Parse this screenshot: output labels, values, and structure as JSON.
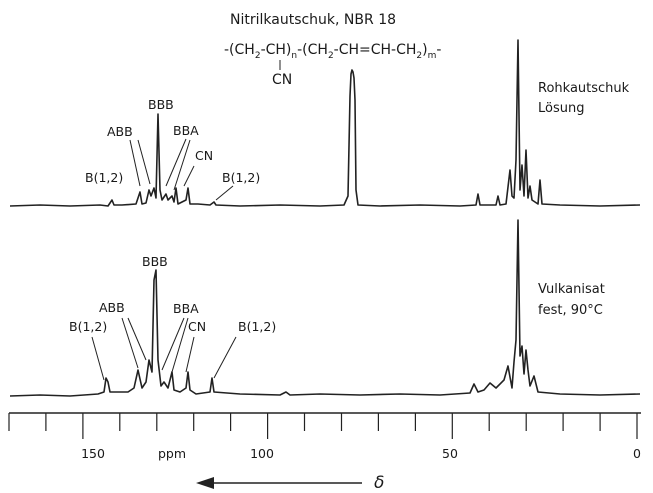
{
  "header": {
    "title": "Nitrilkautschuk, NBR 18",
    "formula": {
      "seg1": "-(CH",
      "sub1": "2",
      "seg2": "-CH)",
      "sub_n": "n",
      "seg3": "-(CH",
      "sub2": "2",
      "seg4": "-CH=CH-CH",
      "sub3": "2",
      "seg5": ")",
      "sub_m": "m",
      "seg6": "-",
      "pendant": "CN"
    }
  },
  "spectra": [
    {
      "condition_line1": "Rohkautschuk",
      "condition_line2": "Lösung",
      "labels": {
        "b12_left": "B(1,2)",
        "abb": "ABB",
        "bbb": "BBB",
        "bba": "BBA",
        "cn": "CN",
        "b12_right": "B(1,2)"
      }
    },
    {
      "condition_line1": "Vulkanisat",
      "condition_line2": "fest, 90°C",
      "labels": {
        "b12_left": "B(1,2)",
        "abb": "ABB",
        "bbb": "BBB",
        "bba": "BBA",
        "cn": "CN",
        "b12_right": "B(1,2)"
      }
    }
  ],
  "axis": {
    "ticks": [
      150,
      100,
      50,
      0
    ],
    "unit_label": "ppm",
    "direction_symbol": "δ"
  }
}
